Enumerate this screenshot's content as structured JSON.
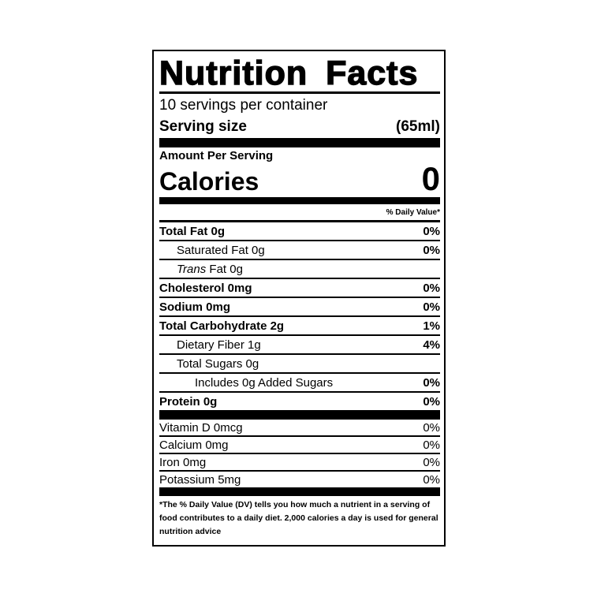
{
  "title": "Nutrition Facts",
  "servings_per_container": "10 servings per container",
  "serving_size": {
    "label": "Serving size",
    "value": "(65ml)"
  },
  "amount_per_serving": "Amount Per Serving",
  "calories": {
    "label": "Calories",
    "value": "0"
  },
  "daily_value_header": "% Daily Value*",
  "nutrients": [
    {
      "name": "Total Fat 0g",
      "dv": "0%"
    },
    {
      "name": "Saturated Fat 0g",
      "dv": "0%"
    },
    {
      "name_italic": "Trans",
      "name": " Fat 0g",
      "dv": ""
    },
    {
      "name": "Cholesterol 0mg",
      "dv": "0%"
    },
    {
      "name": "Sodium 0mg",
      "dv": "0%"
    },
    {
      "name": "Total Carbohydrate 2g",
      "dv": "1%"
    },
    {
      "name": "Dietary Fiber 1g",
      "dv": "4%"
    },
    {
      "name": "Total Sugars 0g",
      "dv": ""
    },
    {
      "name": "Includes 0g Added Sugars",
      "dv": "0%"
    },
    {
      "name": "Protein 0g",
      "dv": "0%"
    }
  ],
  "vitamins": [
    {
      "name": "Vitamin D 0mcg",
      "dv": "0%"
    },
    {
      "name": "Calcium 0mg",
      "dv": "0%"
    },
    {
      "name": "Iron 0mg",
      "dv": "0%"
    },
    {
      "name": "Potassium 5mg",
      "dv": "0%"
    }
  ],
  "footnote": "*The % Daily Value (DV) tells you how much a nutrient in a serving of food contributes to a daily diet. 2,000 calories a day is used for general nutrition advice"
}
